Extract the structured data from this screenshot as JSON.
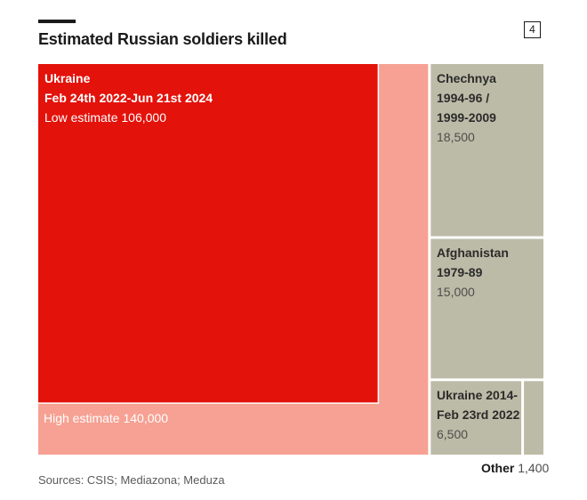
{
  "figure_number": "4",
  "chart_data": {
    "type": "treemap",
    "title": "Estimated Russian soldiers killed",
    "source": "Sources: CSIS; Mediazona; Meduza",
    "units": "soldiers",
    "items": [
      {
        "name_line1": "Ukraine",
        "name_line2": "Feb 24th 2022-Jun 21st 2024",
        "low_label": "Low estimate 106,000",
        "high_label": "High estimate 140,000",
        "low": 106000,
        "high": 140000,
        "color_low": "#e3120b",
        "color_high": "#f6a193"
      },
      {
        "name_line1": "Chechnya",
        "name_line2": "1994-96 /",
        "name_line3": "1999-2009",
        "value_label": "18,500",
        "value": 18500,
        "color": "#bcbba7"
      },
      {
        "name_line1": "Afghanistan",
        "name_line2": "1979-89",
        "value_label": "15,000",
        "value": 15000,
        "color": "#bcbba7"
      },
      {
        "name_line1": "Ukraine 2014-",
        "name_line2": "Feb 23rd 2022",
        "value_label": "6,500",
        "value": 6500,
        "color": "#bcbba7"
      },
      {
        "name_line1": "Other",
        "value_label": "1,400",
        "value": 1400,
        "color": "#bcbba7"
      }
    ]
  }
}
